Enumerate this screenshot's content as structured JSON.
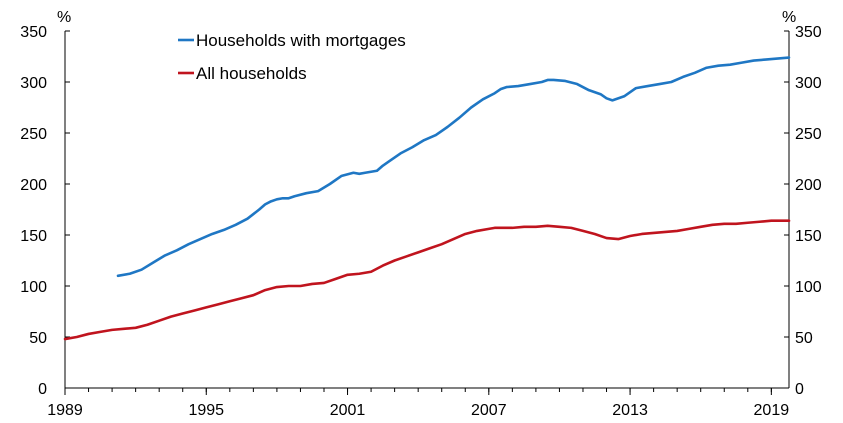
{
  "chart_data": {
    "type": "line",
    "title": "",
    "xlabel": "",
    "ylabel_left": "%",
    "ylabel_right": "%",
    "xlim": [
      1989,
      2019.75
    ],
    "ylim": [
      0,
      350
    ],
    "x_ticks": [
      1989,
      1995,
      2001,
      2007,
      2013,
      2019
    ],
    "y_ticks": [
      0,
      50,
      100,
      150,
      200,
      250,
      300,
      350
    ],
    "grid": false,
    "legend_position": "top-left, inside plot",
    "series": [
      {
        "name": "Households with mortgages",
        "color": "#1f77c4",
        "x": [
          1991.25,
          1991.75,
          1992.25,
          1992.75,
          1993.25,
          1993.75,
          1994.25,
          1994.75,
          1995.25,
          1995.75,
          1996.25,
          1996.75,
          1997.25,
          1997.5,
          1997.75,
          1998.0,
          1998.25,
          1998.5,
          1998.75,
          1999.25,
          1999.75,
          2000.25,
          2000.75,
          2001.25,
          2001.5,
          2001.75,
          2002.25,
          2002.5,
          2002.75,
          2003.25,
          2003.75,
          2004.25,
          2004.75,
          2005.25,
          2005.75,
          2006.25,
          2006.75,
          2007.25,
          2007.5,
          2007.75,
          2008.25,
          2008.75,
          2009.25,
          2009.5,
          2009.75,
          2010.25,
          2010.75,
          2011.25,
          2011.75,
          2012.0,
          2012.25,
          2012.75,
          2013.25,
          2013.75,
          2014.25,
          2014.75,
          2015.25,
          2015.75,
          2016.25,
          2016.75,
          2017.25,
          2017.75,
          2018.25,
          2018.75,
          2019.25,
          2019.75
        ],
        "y": [
          110,
          112,
          116,
          123,
          130,
          135,
          141,
          146,
          151,
          155,
          160,
          166,
          175,
          180,
          183,
          185,
          186,
          186,
          188,
          191,
          193,
          200,
          208,
          211,
          210,
          211,
          213,
          218,
          222,
          230,
          236,
          243,
          248,
          256,
          265,
          275,
          283,
          289,
          293,
          295,
          296,
          298,
          300,
          302,
          302,
          301,
          298,
          292,
          288,
          284,
          282,
          286,
          294,
          296,
          298,
          300,
          305,
          309,
          314,
          316,
          317,
          319,
          321,
          322,
          323,
          324
        ]
      },
      {
        "name": "All households",
        "color": "#c0141e",
        "x": [
          1989.0,
          1989.5,
          1990.0,
          1990.5,
          1991.0,
          1991.5,
          1992.0,
          1992.5,
          1993.0,
          1993.5,
          1994.0,
          1994.5,
          1995.0,
          1995.5,
          1996.0,
          1996.5,
          1997.0,
          1997.5,
          1998.0,
          1998.5,
          1999.0,
          1999.5,
          2000.0,
          2000.5,
          2001.0,
          2001.5,
          2002.0,
          2002.5,
          2003.0,
          2003.5,
          2004.0,
          2004.5,
          2005.0,
          2005.5,
          2006.0,
          2006.5,
          2007.0,
          2007.25,
          2007.5,
          2008.0,
          2008.5,
          2009.0,
          2009.5,
          2010.0,
          2010.5,
          2011.0,
          2011.5,
          2012.0,
          2012.5,
          2013.0,
          2013.5,
          2014.0,
          2014.5,
          2015.0,
          2015.5,
          2016.0,
          2016.5,
          2017.0,
          2017.5,
          2018.0,
          2018.5,
          2019.0,
          2019.75
        ],
        "y": [
          48,
          50,
          53,
          55,
          57,
          58,
          59,
          62,
          66,
          70,
          73,
          76,
          79,
          82,
          85,
          88,
          91,
          96,
          99,
          100,
          100,
          102,
          103,
          107,
          111,
          112,
          114,
          120,
          125,
          129,
          133,
          137,
          141,
          146,
          151,
          154,
          156,
          157,
          157,
          157,
          158,
          158,
          159,
          158,
          157,
          154,
          151,
          147,
          146,
          149,
          151,
          152,
          153,
          154,
          156,
          158,
          160,
          161,
          161,
          162,
          163,
          164,
          164
        ]
      }
    ]
  }
}
